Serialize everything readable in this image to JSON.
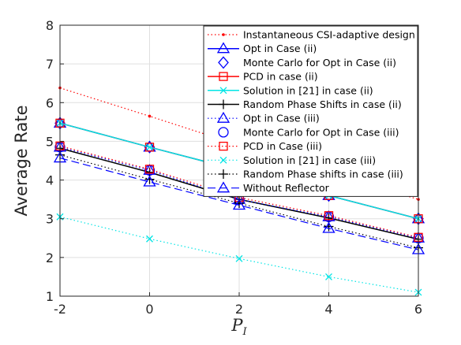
{
  "chart_data": {
    "type": "line",
    "xlabel": "P",
    "xlabel_sub": "I",
    "ylabel": "Average Rate",
    "xlim": [
      -2,
      6
    ],
    "ylim": [
      1,
      8
    ],
    "xticks": [
      -2,
      0,
      2,
      4,
      6
    ],
    "yticks": [
      1,
      2,
      3,
      4,
      5,
      6,
      7,
      8
    ],
    "xtick_labels": [
      "-2",
      "0",
      "2",
      "4",
      "6"
    ],
    "ytick_labels": [
      "1",
      "2",
      "3",
      "4",
      "5",
      "6",
      "7",
      "8"
    ],
    "grid": true,
    "legend_position": "top-right",
    "x": [
      -2,
      0,
      2,
      4,
      6
    ],
    "series": [
      {
        "name": "Instantaneous CSI-adaptive design",
        "values": [
          6.38,
          5.65,
          4.9,
          4.2,
          3.5
        ],
        "color": "#ff0000",
        "line": "dotted",
        "marker": "dot"
      },
      {
        "name": "Opt in Case (ii)",
        "values": [
          5.47,
          4.85,
          4.25,
          3.6,
          3.0
        ],
        "color": "#0000ff",
        "line": "solid",
        "marker": "triangle"
      },
      {
        "name": "Monte Carlo for Opt in Case (ii)",
        "values": [
          5.47,
          4.85,
          4.25,
          3.6,
          3.0
        ],
        "color": "#0000ff",
        "line": "none",
        "marker": "diamond"
      },
      {
        "name": "PCD in case (ii)",
        "values": [
          5.47,
          4.85,
          4.25,
          3.6,
          3.0
        ],
        "color": "#ff0000",
        "line": "solid",
        "marker": "square"
      },
      {
        "name": "Solution in [21] in case (ii)",
        "values": [
          5.47,
          4.85,
          4.25,
          3.6,
          3.0
        ],
        "color": "#00e5e5",
        "line": "solid",
        "marker": "x"
      },
      {
        "name": "Random Phase Shifts in case (ii)",
        "values": [
          4.82,
          4.2,
          3.5,
          3.02,
          2.47
        ],
        "color": "#000000",
        "line": "solid",
        "marker": "plus"
      },
      {
        "name": "Opt in Case (iii)",
        "values": [
          4.85,
          4.25,
          3.5,
          3.05,
          2.5
        ],
        "color": "#0000ff",
        "line": "dotted",
        "marker": "triangle"
      },
      {
        "name": "Monte Carlo for Opt in Case (iii)",
        "values": [
          4.85,
          4.25,
          3.5,
          3.05,
          2.5
        ],
        "color": "#0000ff",
        "line": "none",
        "marker": "circle"
      },
      {
        "name": "PCD in Case (iii)",
        "values": [
          4.88,
          4.28,
          3.55,
          3.08,
          2.52
        ],
        "color": "#ff0000",
        "line": "dotted",
        "marker": "square"
      },
      {
        "name": "Solution in [21] in case (iii)",
        "values": [
          3.05,
          2.48,
          1.97,
          1.5,
          1.1
        ],
        "color": "#00e5e5",
        "line": "dotted",
        "marker": "x"
      },
      {
        "name": "Random Phase shifts in case (iii)",
        "values": [
          4.65,
          4.02,
          3.4,
          2.8,
          2.25
        ],
        "color": "#000000",
        "line": "dotted",
        "marker": "plus"
      },
      {
        "name": "Without Reflector",
        "values": [
          4.57,
          3.95,
          3.35,
          2.75,
          2.2
        ],
        "color": "#0000ff",
        "line": "dashed",
        "marker": "triangle"
      }
    ]
  }
}
